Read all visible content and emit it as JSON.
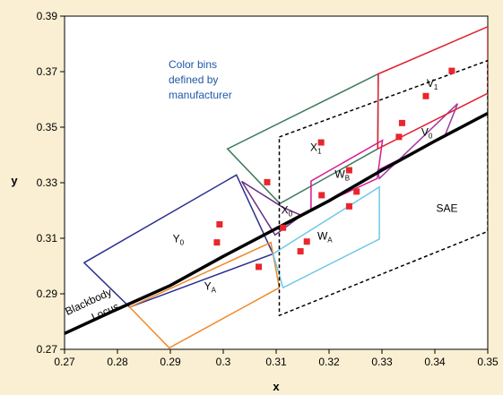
{
  "chart_data": {
    "type": "scatter",
    "title": "",
    "xlabel": "x",
    "ylabel": "y",
    "xlim": [
      0.27,
      0.35
    ],
    "ylim": [
      0.27,
      0.39
    ],
    "grid": false,
    "x_ticks": [
      "0.27",
      "0.28",
      "0.29",
      "0.3",
      "0.31",
      "0.32",
      "0.33",
      "0.34",
      "0.35"
    ],
    "y_ticks": [
      "0.27",
      "0.29",
      "0.31",
      "0.33",
      "0.35",
      "0.37",
      "0.39"
    ],
    "annotation_lines": [
      "Color bins",
      "defined by",
      "manufacturer"
    ],
    "annotation_color": "#1f58a8",
    "locus_label_lines": [
      "Blackbody",
      "Locus"
    ],
    "blackbody_locus": {
      "color": "#000000",
      "points": [
        [
          0.27,
          0.2757
        ],
        [
          0.28,
          0.2845
        ],
        [
          0.29,
          0.293
        ],
        [
          0.3,
          0.3035
        ],
        [
          0.31,
          0.3135
        ],
        [
          0.32,
          0.3235
        ],
        [
          0.33,
          0.3345
        ],
        [
          0.34,
          0.345
        ],
        [
          0.35,
          0.355
        ]
      ]
    },
    "bins": [
      {
        "name": "Y",
        "sub": "0",
        "color": "#2b2f8f",
        "dash": false,
        "points": [
          [
            0.2737,
            0.3012
          ],
          [
            0.3025,
            0.3328
          ],
          [
            0.3094,
            0.3044
          ],
          [
            0.2823,
            0.2852
          ]
        ],
        "label_pos": [
          0.2915,
          0.3085
        ]
      },
      {
        "name": "Y",
        "sub": "A",
        "color": "#ef8a2a",
        "dash": false,
        "points": [
          [
            0.2823,
            0.2852
          ],
          [
            0.309,
            0.3085
          ],
          [
            0.3106,
            0.2922
          ],
          [
            0.2898,
            0.2705
          ]
        ],
        "label_pos": [
          0.2975,
          0.2915
        ]
      },
      {
        "name": "X",
        "sub": "1",
        "color": "#3d7a5c",
        "dash": false,
        "points": [
          [
            0.3008,
            0.3422
          ],
          [
            0.3293,
            0.3692
          ],
          [
            0.3292,
            0.3422
          ],
          [
            0.3107,
            0.3225
          ]
        ],
        "label_pos": [
          0.3175,
          0.3415
        ]
      },
      {
        "name": "X",
        "sub": "0",
        "color": "#6b2d82",
        "dash": false,
        "points": [
          [
            0.3035,
            0.3305
          ],
          [
            0.3112,
            0.3212
          ],
          [
            0.3148,
            0.3182
          ],
          [
            0.3098,
            0.3112
          ]
        ],
        "label_pos": [
          0.312,
          0.3188
        ]
      },
      {
        "name": "W",
        "sub": "A",
        "color": "#6ec8e6",
        "dash": false,
        "points": [
          [
            0.3094,
            0.3044
          ],
          [
            0.3295,
            0.3285
          ],
          [
            0.3295,
            0.3097
          ],
          [
            0.3113,
            0.2922
          ]
        ],
        "label_pos": [
          0.3192,
          0.3095
        ]
      },
      {
        "name": "W",
        "sub": "B",
        "color": "#d8188f",
        "dash": false,
        "points": [
          [
            0.3166,
            0.3306
          ],
          [
            0.3301,
            0.3453
          ],
          [
            0.3291,
            0.3315
          ],
          [
            0.3166,
            0.3205
          ]
        ],
        "label_pos": [
          0.3225,
          0.3318
        ]
      },
      {
        "name": "V",
        "sub": "0",
        "color": "#a03a9f",
        "dash": false,
        "points": [
          [
            0.3295,
            0.3315
          ],
          [
            0.3443,
            0.3585
          ],
          [
            0.3418,
            0.3465
          ],
          [
            0.3292,
            0.3345
          ]
        ],
        "label_pos": [
          0.3385,
          0.347
        ]
      },
      {
        "name": "V",
        "sub": "1",
        "color": "#e02030",
        "dash": false,
        "points": [
          [
            0.3293,
            0.3692
          ],
          [
            0.35,
            0.3862
          ],
          [
            0.35,
            0.3622
          ],
          [
            0.3292,
            0.3422
          ]
        ],
        "label_pos": [
          0.3395,
          0.3645
        ]
      },
      {
        "name": "SAE",
        "sub": "",
        "color": "#000000",
        "dash": true,
        "points": [
          [
            0.3106,
            0.3465
          ],
          [
            0.35,
            0.374
          ],
          [
            0.35,
            0.3125
          ],
          [
            0.3106,
            0.2822
          ]
        ],
        "label_pos": [
          0.3423,
          0.3195
        ]
      }
    ],
    "series": [
      {
        "type": "scatter",
        "color": "#e8262d",
        "points": [
          [
            0.2993,
            0.315
          ],
          [
            0.2988,
            0.3085
          ],
          [
            0.3083,
            0.3302
          ],
          [
            0.3067,
            0.2997
          ],
          [
            0.3113,
            0.3138
          ],
          [
            0.3185,
            0.3445
          ],
          [
            0.3186,
            0.3255
          ],
          [
            0.3158,
            0.3088
          ],
          [
            0.3146,
            0.3053
          ],
          [
            0.3238,
            0.3215
          ],
          [
            0.3238,
            0.3345
          ],
          [
            0.3252,
            0.3268
          ],
          [
            0.3332,
            0.3465
          ],
          [
            0.3338,
            0.3515
          ],
          [
            0.3383,
            0.3612
          ],
          [
            0.3432,
            0.3703
          ]
        ]
      }
    ]
  }
}
